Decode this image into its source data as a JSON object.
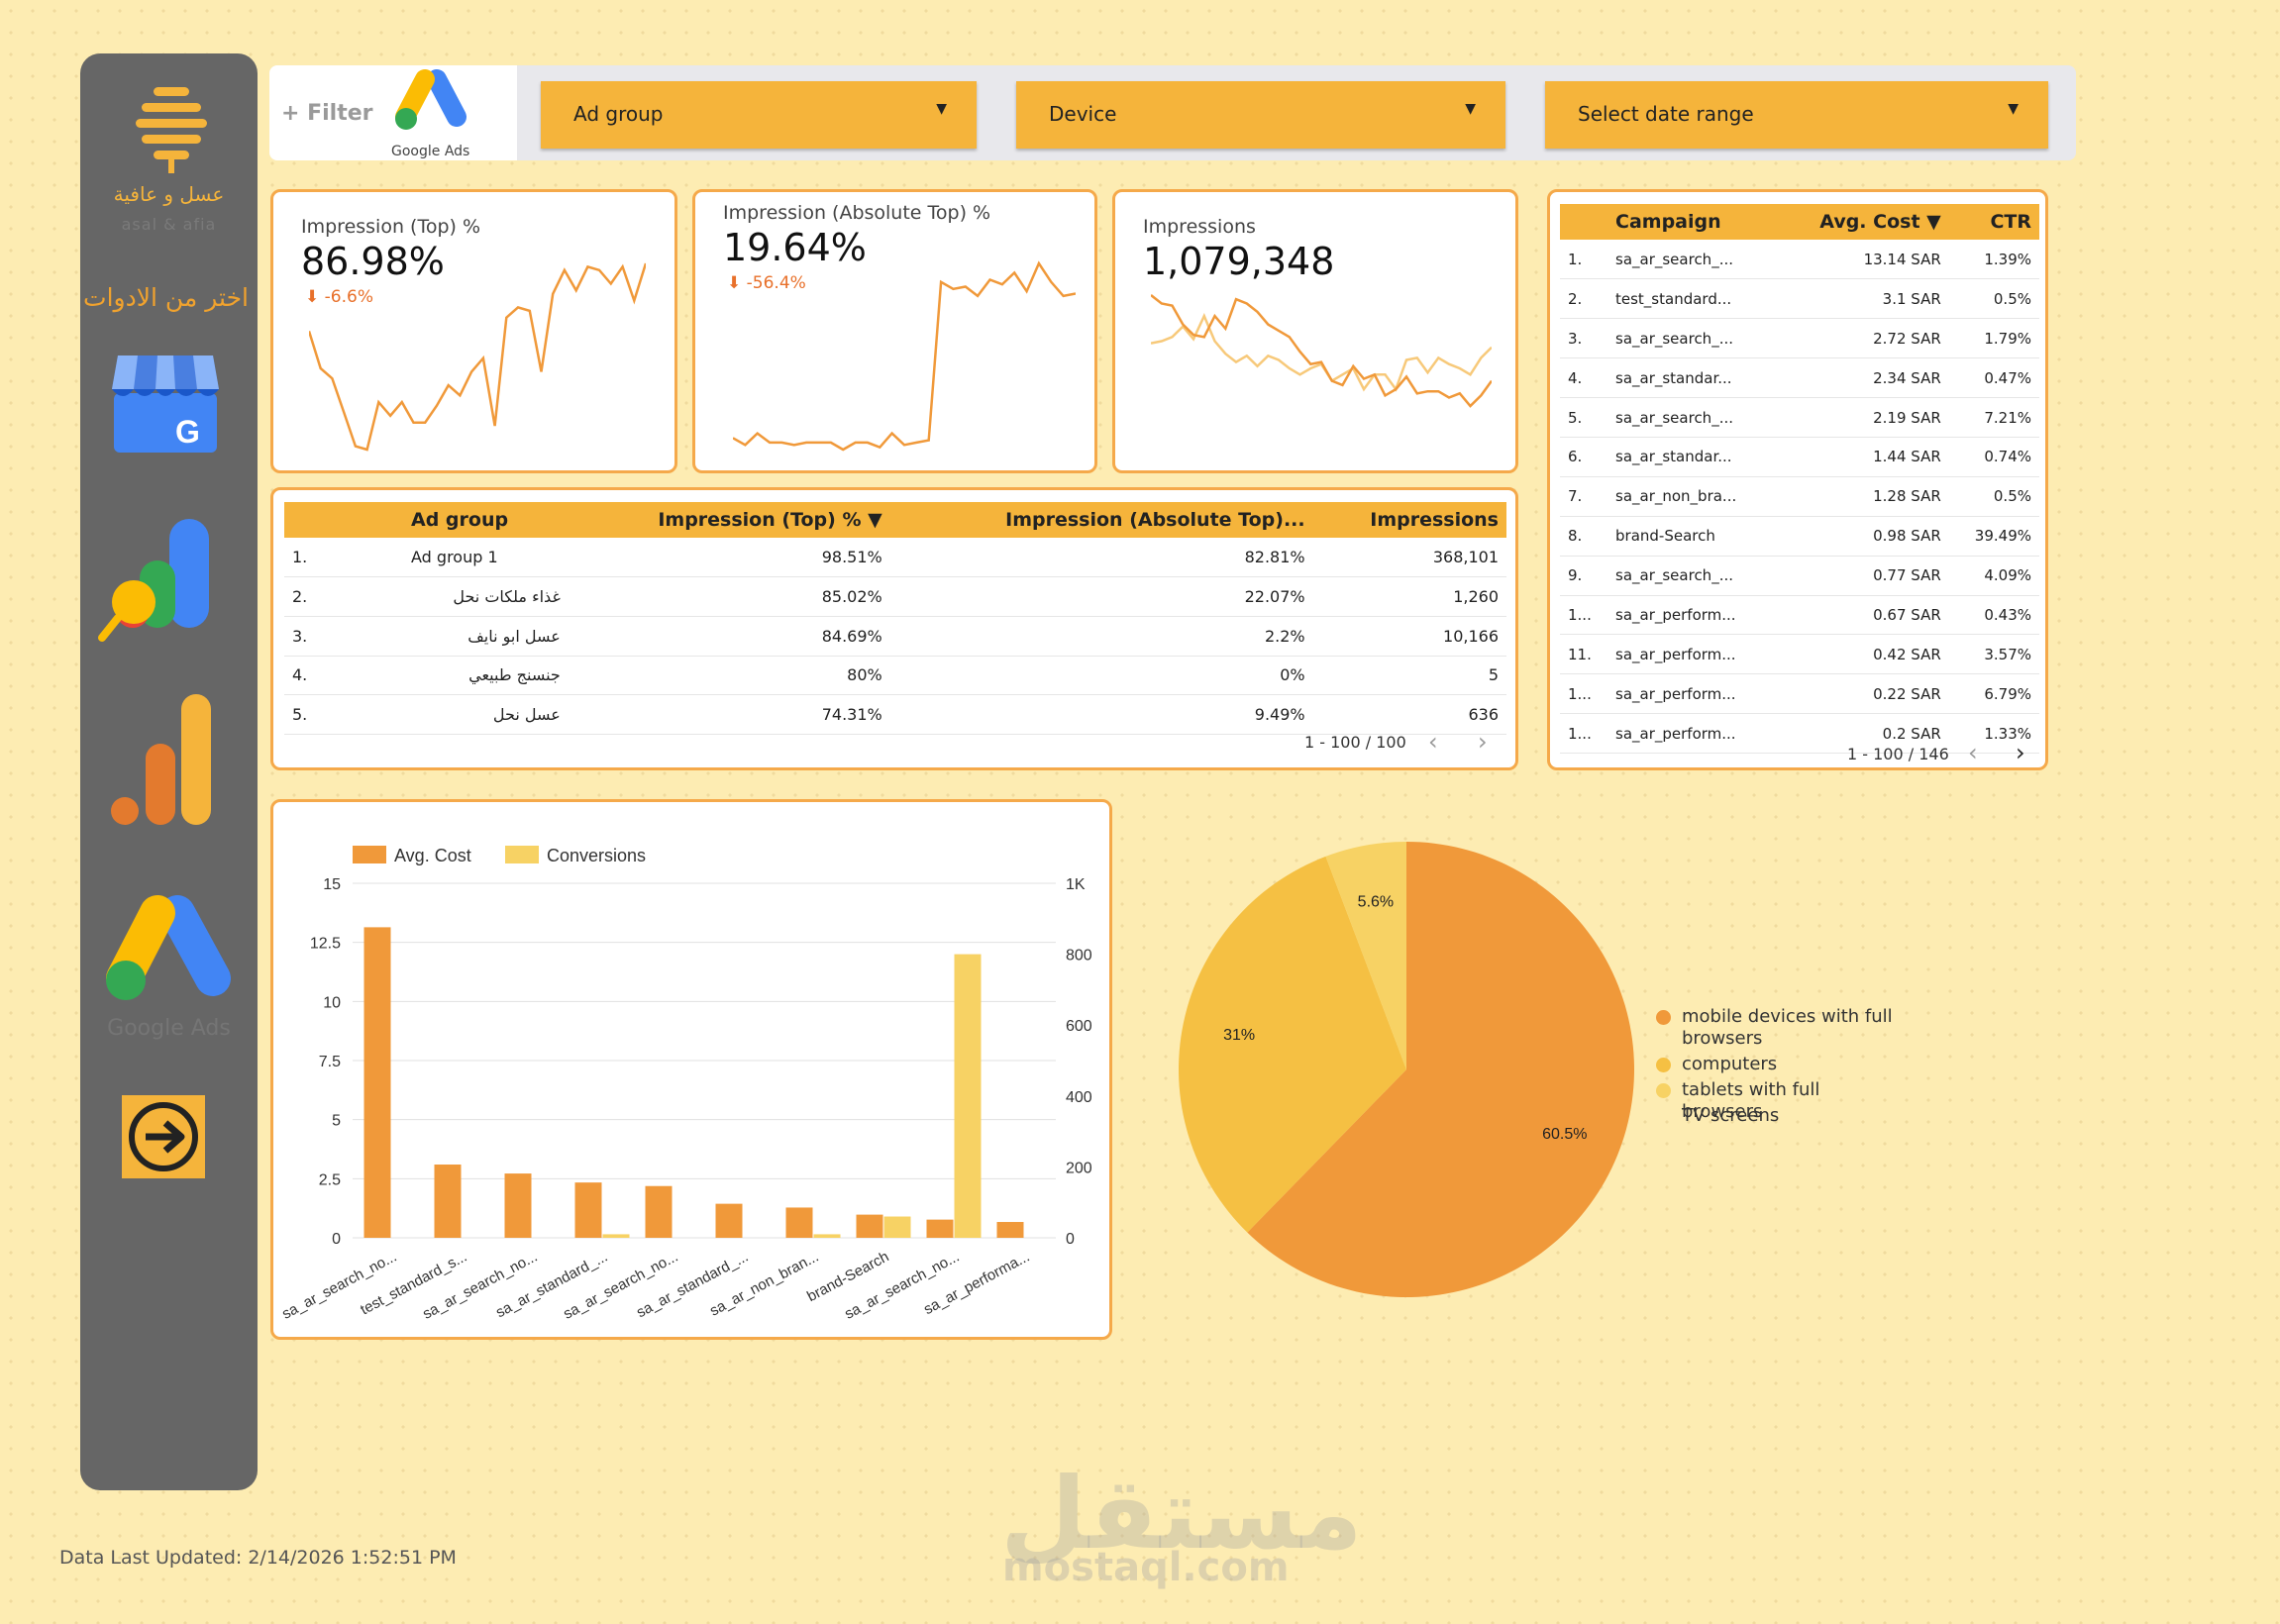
{
  "sidebar": {
    "brand_ar": "عسل و عافية",
    "brand_en": "asal & afia",
    "tools_label": "اختر من الادوات",
    "google_ads_label": "Google Ads"
  },
  "filters": {
    "add_filter": "+ Filter",
    "google_ads_logo": "Google Ads",
    "ad_group": "Ad group",
    "device": "Device",
    "date_range": "Select date range"
  },
  "kpis": [
    {
      "title": "Impression (Top) %",
      "value": "86.98%",
      "delta": "-6.6%",
      "spark": [
        36,
        25,
        22,
        12,
        2,
        1,
        15,
        11,
        15,
        9,
        9,
        14,
        20,
        17,
        24,
        28,
        8,
        40,
        43,
        42,
        24,
        47,
        54,
        48,
        55,
        54,
        50,
        55,
        45,
        56
      ]
    },
    {
      "title": "Impression (Absolute Top) %",
      "value": "19.64%",
      "delta": "-56.4%",
      "spark": [
        5,
        2,
        7,
        3,
        3,
        2,
        3,
        3,
        3,
        0,
        3,
        3,
        1,
        7,
        2,
        3,
        4,
        72,
        69,
        70,
        66,
        73,
        71,
        76,
        68,
        80,
        72,
        66,
        67
      ]
    },
    {
      "title": "Impressions",
      "value": "1,079,348",
      "spark_a": [
        58,
        54,
        53,
        44,
        39,
        38,
        48,
        42,
        56,
        54,
        50,
        44,
        41,
        38,
        31,
        25,
        26,
        17,
        15,
        24,
        18,
        20,
        10,
        13,
        19,
        11,
        12,
        12,
        9,
        11,
        5,
        10,
        17
      ],
      "spark_b": [
        35,
        36,
        38,
        43,
        37,
        48,
        36,
        30,
        26,
        29,
        24,
        29,
        27,
        23,
        20,
        23,
        25,
        17,
        20,
        23,
        13,
        20,
        20,
        13,
        27,
        28,
        21,
        28,
        25,
        23,
        20,
        28,
        33
      ]
    }
  ],
  "adgroup_table": {
    "headers": [
      "Ad group",
      "Impression (Top) % ▼",
      "Impression (Absolute Top)...",
      "Impressions"
    ],
    "rows": [
      {
        "idx": "1.",
        "name": "Ad group 1",
        "top": "98.51%",
        "abs": "82.81%",
        "imp": "368,101"
      },
      {
        "idx": "2.",
        "name": "غذاء ملكات نحل",
        "top": "85.02%",
        "abs": "22.07%",
        "imp": "1,260"
      },
      {
        "idx": "3.",
        "name": "عسل ابو نايف",
        "top": "84.69%",
        "abs": "2.2%",
        "imp": "10,166"
      },
      {
        "idx": "4.",
        "name": "جنسنج طبيعي",
        "top": "80%",
        "abs": "0%",
        "imp": "5"
      },
      {
        "idx": "5.",
        "name": "عسل نحل",
        "top": "74.31%",
        "abs": "9.49%",
        "imp": "636"
      }
    ],
    "pager": "1 - 100 / 100"
  },
  "campaign_table": {
    "headers": [
      "Campaign",
      "Avg. Cost ▼",
      "CTR"
    ],
    "rows": [
      {
        "idx": "1.",
        "name": "sa_ar_search_...",
        "cost": "13.14 SAR",
        "ctr": "1.39%"
      },
      {
        "idx": "2.",
        "name": "test_standard...",
        "cost": "3.1 SAR",
        "ctr": "0.5%"
      },
      {
        "idx": "3.",
        "name": "sa_ar_search_...",
        "cost": "2.72 SAR",
        "ctr": "1.79%"
      },
      {
        "idx": "4.",
        "name": "sa_ar_standar...",
        "cost": "2.34 SAR",
        "ctr": "0.47%"
      },
      {
        "idx": "5.",
        "name": "sa_ar_search_...",
        "cost": "2.19 SAR",
        "ctr": "7.21%"
      },
      {
        "idx": "6.",
        "name": "sa_ar_standar...",
        "cost": "1.44 SAR",
        "ctr": "0.74%"
      },
      {
        "idx": "7.",
        "name": "sa_ar_non_bra...",
        "cost": "1.28 SAR",
        "ctr": "0.5%"
      },
      {
        "idx": "8.",
        "name": "brand-Search",
        "cost": "0.98 SAR",
        "ctr": "39.49%"
      },
      {
        "idx": "9.",
        "name": "sa_ar_search_...",
        "cost": "0.77 SAR",
        "ctr": "4.09%"
      },
      {
        "idx": "1...",
        "name": "sa_ar_perform...",
        "cost": "0.67 SAR",
        "ctr": "0.43%"
      },
      {
        "idx": "11.",
        "name": "sa_ar_perform...",
        "cost": "0.42 SAR",
        "ctr": "3.57%"
      },
      {
        "idx": "1...",
        "name": "sa_ar_perform...",
        "cost": "0.22 SAR",
        "ctr": "6.79%"
      },
      {
        "idx": "1...",
        "name": "sa_ar_perform...",
        "cost": "0.2 SAR",
        "ctr": "1.33%"
      }
    ],
    "pager": "1 - 100 / 146"
  },
  "chart_data": [
    {
      "type": "bar",
      "categories": [
        "sa_ar_search_no...",
        "test_standard_s...",
        "sa_ar_search_no...",
        "sa_ar_standard_...",
        "sa_ar_search_no...",
        "sa_ar_standard_...",
        "sa_ar_non_bran...",
        "brand-Search",
        "sa_ar_search_no...",
        "sa_ar_performa..."
      ],
      "series": [
        {
          "name": "Avg. Cost",
          "axis": "left",
          "values": [
            13.14,
            3.1,
            2.72,
            2.34,
            2.19,
            1.44,
            1.28,
            0.98,
            0.77,
            0.67
          ],
          "color": "#f0993a"
        },
        {
          "name": "Conversions",
          "axis": "right",
          "values": [
            0,
            0,
            0,
            10,
            0,
            0,
            10,
            60,
            800,
            0
          ],
          "color": "#f7d264"
        }
      ],
      "yleft_ticks": [
        "0",
        "2.5",
        "5",
        "7.5",
        "10",
        "12.5",
        "15"
      ],
      "yleft_lim": [
        0,
        15
      ],
      "yright_ticks": [
        "0",
        "200",
        "400",
        "600",
        "800",
        "1K"
      ],
      "yright_lim": [
        0,
        1000
      ],
      "legend": "top-left"
    },
    {
      "type": "pie",
      "slices": [
        {
          "name": "mobile devices with full browsers",
          "value": 60.5,
          "label": "60.5%",
          "color": "#f0993a"
        },
        {
          "name": "computers",
          "value": 31,
          "label": "31%",
          "color": "#f5c043"
        },
        {
          "name": "tablets with full browsers",
          "value": 5.6,
          "label": "5.6%",
          "color": "#f7d264"
        },
        {
          "name": "TV screens",
          "value": 0,
          "label": "",
          "color": "#fbe3a0"
        }
      ],
      "legend": "right"
    }
  ],
  "footer": {
    "last_updated": "Data Last Updated: 2/14/2026 1:52:51 PM",
    "watermark_ar": "مستقل",
    "watermark_en": "mostaql.com"
  }
}
